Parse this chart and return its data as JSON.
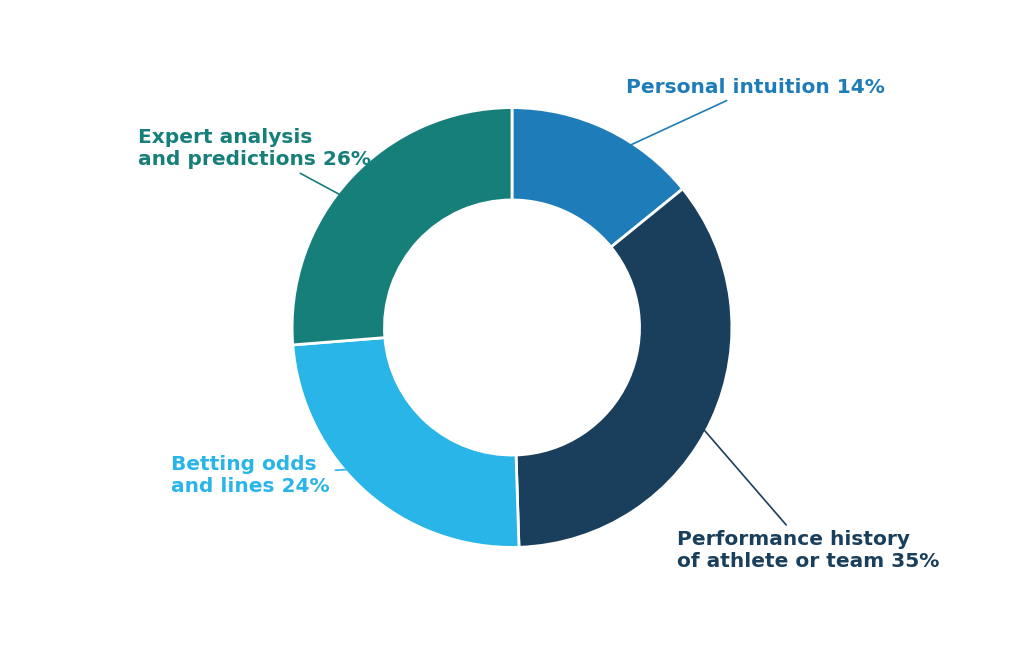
{
  "labels": [
    "Personal intuition 14%",
    "Performance history\nof athlete or team 35%",
    "Betting odds\nand lines 24%",
    "Expert analysis\nand predictions 26%"
  ],
  "values": [
    14,
    35,
    24,
    26
  ],
  "colors": [
    "#1e7cb8",
    "#1a3f5c",
    "#29b5e8",
    "#167f7a"
  ],
  "text_colors": [
    "#1e7cb8",
    "#1a3f5c",
    "#29b5e8",
    "#167f7a"
  ],
  "donut_width": 0.42,
  "background_color": "#ffffff",
  "label_fontsize": 14.5,
  "edge_color": "#ffffff",
  "edge_linewidth": 2.0
}
